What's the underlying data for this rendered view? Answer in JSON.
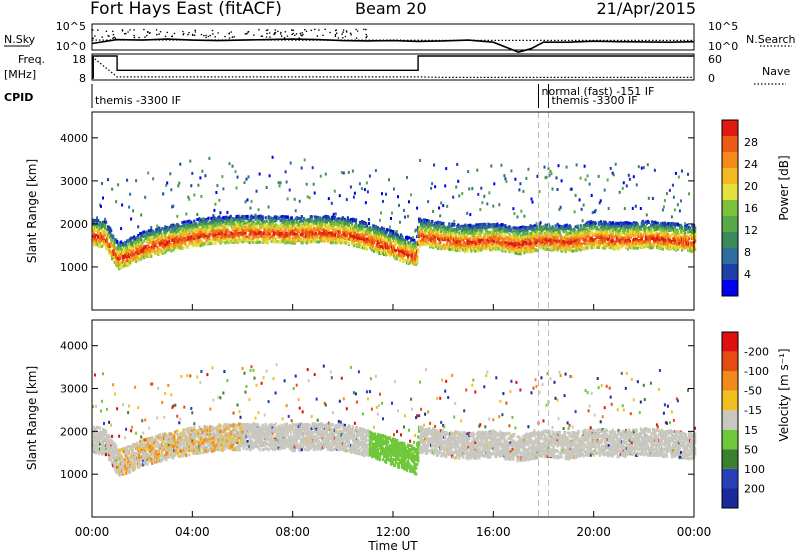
{
  "header": {
    "station": "Fort Hays East (fitACF)",
    "beam": "Beam 20",
    "date": "21/Apr/2015"
  },
  "chart_data": [
    {
      "type": "line",
      "panel": "nsky-nsearch",
      "left_label": "N.Sky",
      "right_label": "N.Search",
      "left_ticks": [
        "10^5",
        "10^0"
      ],
      "right_ticks": [
        "10^5",
        "10^0"
      ],
      "series": [
        {
          "name": "N.Sky",
          "style": "solid",
          "x": [
            0,
            1,
            2,
            3,
            4,
            5,
            6,
            7,
            8,
            9,
            10,
            11,
            12,
            13,
            14,
            15,
            16,
            17,
            17.5,
            18,
            19,
            20,
            21,
            22,
            23,
            24
          ],
          "y_frac": [
            0.25,
            0.4,
            0.38,
            0.42,
            0.38,
            0.36,
            0.38,
            0.4,
            0.42,
            0.4,
            0.36,
            0.35,
            0.36,
            0.33,
            0.35,
            0.38,
            0.3,
            -0.08,
            0.05,
            0.3,
            0.3,
            0.34,
            0.32,
            0.31,
            0.3,
            0.32
          ]
        },
        {
          "name": "N.Search",
          "style": "dotted",
          "x": [
            0,
            2,
            4,
            6,
            8,
            10,
            12,
            14,
            16,
            18,
            20,
            22,
            24
          ],
          "y_frac": [
            0.38,
            0.39,
            0.38,
            0.39,
            0.38,
            0.38,
            0.38,
            0.37,
            0.37,
            0.37,
            0.37,
            0.37,
            0.37
          ]
        }
      ]
    },
    {
      "type": "line",
      "panel": "freq-nave",
      "left_label": "Freq.",
      "left_unit": "[MHz]",
      "right_label": "Nave",
      "left_ticks": [
        "18",
        "8"
      ],
      "right_ticks": [
        "60",
        "0"
      ],
      "series": [
        {
          "name": "Freq.",
          "style": "solid",
          "x": [
            0,
            0.05,
            0.05,
            1,
            1,
            13,
            13,
            24
          ],
          "y_mhz": [
            8,
            8,
            18,
            18,
            11.5,
            11.5,
            18,
            18
          ]
        },
        {
          "name": "Nave",
          "style": "dotted",
          "x": [
            0,
            1,
            13,
            14,
            24
          ],
          "y_frac": [
            0.9,
            0.12,
            0.12,
            0.1,
            0.1
          ]
        }
      ]
    },
    {
      "type": "table",
      "panel": "cpid",
      "label": "CPID",
      "entries": [
        {
          "text": "themis -3300 IF",
          "x_start": 0,
          "row": "lower"
        },
        {
          "text": "normal (fast) -151 IF",
          "x_start": 17.8,
          "row": "upper"
        },
        {
          "text": "themis -3300 IF",
          "x_start": 18.2,
          "row": "lower"
        }
      ],
      "markers": [
        17.8,
        18.2
      ]
    },
    {
      "type": "heatmap",
      "panel": "power",
      "ylabel": "Slant Range [km]",
      "ylim": [
        0,
        4600
      ],
      "yticks": [
        1000,
        2000,
        3000,
        4000
      ],
      "xlim": [
        0,
        24
      ],
      "colorbar_label": "Power [dB]",
      "colorbar_ticks": [
        4,
        8,
        12,
        16,
        20,
        24,
        28
      ],
      "colors": [
        "#0000ee",
        "#1f3fa8",
        "#2f6fa0",
        "#3c8a5a",
        "#58a848",
        "#7cc23a",
        "#e4e040",
        "#f4b820",
        "#f48a1a",
        "#ec5a14",
        "#e01a10"
      ],
      "band_center_km": {
        "x": [
          0,
          0.5,
          1,
          1.5,
          2,
          3,
          4,
          5,
          6,
          7,
          8,
          9,
          10,
          11,
          12,
          12.9,
          13,
          14,
          15,
          16,
          17,
          18,
          19,
          20,
          21,
          22,
          23,
          24
        ],
        "y": [
          1750,
          1700,
          1200,
          1300,
          1450,
          1600,
          1720,
          1800,
          1820,
          1810,
          1800,
          1820,
          1800,
          1650,
          1450,
          1250,
          1750,
          1650,
          1600,
          1650,
          1550,
          1650,
          1600,
          1700,
          1650,
          1700,
          1650,
          1600
        ]
      },
      "dashed_markers": [
        17.8,
        18.2
      ]
    },
    {
      "type": "heatmap",
      "panel": "velocity",
      "ylabel": "Slant Range [km]",
      "xlabel": "Time UT",
      "ylim": [
        0,
        4600
      ],
      "yticks": [
        1000,
        2000,
        3000,
        4000
      ],
      "xlim": [
        0,
        24
      ],
      "xticks": [
        "00:00",
        "04:00",
        "08:00",
        "12:00",
        "16:00",
        "20:00",
        "00:00"
      ],
      "colorbar_label": "Velocity [m s⁻¹]",
      "colorbar_ticks": [
        "200",
        "100",
        "50",
        "15",
        "-15",
        "-50",
        "-100",
        "-200"
      ],
      "colors": [
        "#1a2a9a",
        "#2a40b8",
        "#3a8030",
        "#6ec83a",
        "#c8c8c0",
        "#f0c020",
        "#f08a18",
        "#e84a14",
        "#e01010"
      ],
      "dashed_markers": [
        17.8,
        18.2
      ]
    }
  ]
}
